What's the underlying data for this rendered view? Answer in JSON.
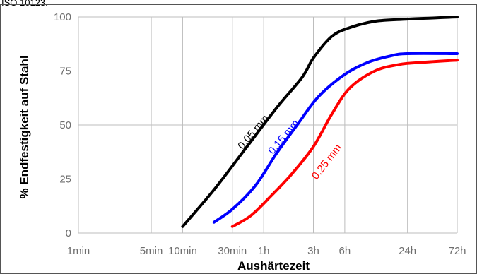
{
  "header_text": "ISO 10123.",
  "chart_data": {
    "type": "line",
    "title": "",
    "xlabel": "Aushärtezeit",
    "ylabel": "% Endfestigkeit auf Stahl",
    "x_scale": "log",
    "x_unit": "min",
    "x_ticks": [
      {
        "label": "1min",
        "value": 1
      },
      {
        "label": "5min",
        "value": 5
      },
      {
        "label": "10min",
        "value": 10
      },
      {
        "label": "30min",
        "value": 30
      },
      {
        "label": "1h",
        "value": 60
      },
      {
        "label": "3h",
        "value": 180
      },
      {
        "label": "6h",
        "value": 360
      },
      {
        "label": "24h",
        "value": 1440
      },
      {
        "label": "72h",
        "value": 4320
      }
    ],
    "xlim": [
      1,
      4320
    ],
    "ylim": [
      0,
      100
    ],
    "y_ticks": [
      0,
      25,
      50,
      75,
      100
    ],
    "grid": true,
    "series": [
      {
        "name": "0,05 mm",
        "color": "#000000",
        "x": [
          10,
          20,
          40,
          80,
          140,
          180,
          270,
          400,
          700,
          1440,
          4320
        ],
        "y": [
          3,
          20,
          39,
          58,
          72,
          81,
          91,
          95,
          98,
          99,
          100
        ]
      },
      {
        "name": "0,15 mm",
        "color": "#0000ff",
        "x": [
          20,
          30,
          50,
          80,
          130,
          200,
          350,
          600,
          1000,
          1440,
          4320
        ],
        "y": [
          5,
          11,
          22,
          37,
          51,
          63,
          73,
          79,
          82,
          83,
          83
        ]
      },
      {
        "name": "0,25 mm",
        "color": "#ff0000",
        "x": [
          30,
          45,
          70,
          110,
          180,
          270,
          400,
          700,
          1200,
          2000,
          4320
        ],
        "y": [
          3,
          8,
          17,
          27,
          40,
          55,
          67,
          75,
          78,
          79,
          80
        ]
      }
    ]
  }
}
